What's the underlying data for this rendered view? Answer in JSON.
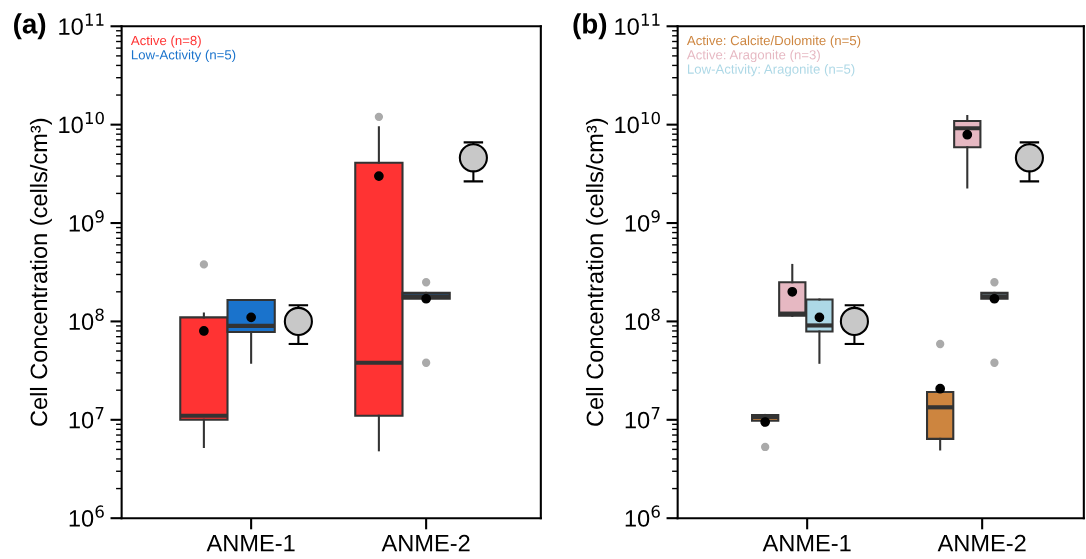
{
  "chart_data": [
    {
      "type": "box",
      "title": "(a)",
      "ylabel": "Cell Concentration (cells/cm³)",
      "categories": [
        "ANME-1",
        "ANME-2"
      ],
      "log": true,
      "legend": "top left",
      "ylim": [
        1000000.0,
        100000000000.0
      ],
      "yticks": [
        {
          "value": 1000000.0,
          "label": "10$^{6}$"
        },
        {
          "value": 10000000.0,
          "label": "10$^{7}$"
        },
        {
          "value": 100000000.0,
          "label": "10$^{8}$"
        },
        {
          "value": 1000000000.0,
          "label": "10$^{9}$"
        },
        {
          "value": 10000000000.0,
          "label": "10$^{10}$"
        },
        {
          "value": 100000000000.0,
          "label": "10$^{11}$"
        }
      ],
      "series": [
        {
          "name": "Active (n=8)",
          "color": "#ff3333",
          "boxes": [
            {
              "low": 5300000.0,
              "q1": 10000000.0,
              "median": 11000000.0,
              "q3": 110000000.0,
              "high": 120000000.0,
              "mean": 80000000.0,
              "outliers": [
                380000000.0
              ]
            },
            {
              "low": 4900000.0,
              "q1": 11000000.0,
              "median": 38000000.0,
              "q3": 4100000000.0,
              "high": 9400000000.0,
              "mean": 3000000000.0,
              "outliers": [
                12000000000.0
              ]
            }
          ]
        },
        {
          "name": "Low-Activity (n=5)",
          "color": "#1a73cc",
          "boxes": [
            {
              "low": 38000000.0,
              "q1": 78000000.0,
              "median": 90000000.0,
              "q3": 165000000.0,
              "high": 165000000.0,
              "mean": 110000000.0
            },
            {
              "low": 170000000.0,
              "q1": 170000000.0,
              "median": 180000000.0,
              "q3": 195000000.0,
              "high": 195000000.0,
              "mean": 170000000.0,
              "outliers": [
                250000000.0,
                38000000.0
              ]
            }
          ]
        },
        {
          "type": "scatter",
          "color": "#c8c8c8",
          "x": [
            "ANME-1",
            "ANME-2"
          ],
          "values": [
            100000000.0,
            4600000000.0
          ],
          "errors": [
            [
              59000000.0,
              146000000.0
            ],
            [
              2650000000.0,
              6600000000.0
            ]
          ]
        }
      ]
    },
    {
      "type": "box",
      "title": "(b)",
      "ylabel": "Cell Concentration (cells/cm³)",
      "categories": [
        "ANME-1",
        "ANME-2"
      ],
      "log": true,
      "legend": "top left",
      "ylim": [
        1000000.0,
        100000000000.0
      ],
      "yticks": [
        {
          "value": 1000000.0,
          "label": "10$^{6}$"
        },
        {
          "value": 10000000.0,
          "label": "10$^{7}$"
        },
        {
          "value": 100000000.0,
          "label": "10$^{8}$"
        },
        {
          "value": 1000000000.0,
          "label": "10$^{9}$"
        },
        {
          "value": 10000000000.0,
          "label": "10$^{10}$"
        },
        {
          "value": 100000000000.0,
          "label": "10$^{11}$"
        }
      ],
      "series": [
        {
          "name": "Active: Calcite/Dolomite (n=5)",
          "color": "#cd853f",
          "boxes": [
            {
              "low": 9800000.0,
              "q1": 9800000.0,
              "median": 10700000.0,
              "q3": 11200000.0,
              "high": 11200000.0,
              "mean": 9500000.0,
              "outliers": [
                5300000.0
              ]
            },
            {
              "low": 5000000.0,
              "q1": 6400000.0,
              "median": 13400000.0,
              "q3": 19200000.0,
              "high": 19200000.0,
              "mean": 20700000.0,
              "outliers": [
                59000000.0
              ]
            }
          ]
        },
        {
          "name": "Active: Aragonite (n=3)",
          "color": "#e6b8c2",
          "boxes": [
            {
              "low": 114000000.0,
              "q1": 114000000.0,
              "median": 120000000.0,
              "q3": 250000000.0,
              "high": 375000000.0,
              "mean": 200000000.0
            },
            {
              "low": 2300000000.0,
              "q1": 5900000000.0,
              "median": 9200000000.0,
              "q3": 10900000000.0,
              "high": 12200000000.0,
              "mean": 7900000000.0
            }
          ]
        },
        {
          "name": "Low-Activity: Aragonite (n=5)",
          "color": "#add8e6",
          "boxes": [
            {
              "low": 38000000.0,
              "q1": 79000000.0,
              "median": 91000000.0,
              "q3": 167000000.0,
              "high": 167000000.0,
              "mean": 110000000.0
            },
            {
              "low": 170000000.0,
              "q1": 170000000.0,
              "median": 180000000.0,
              "q3": 195000000.0,
              "high": 195000000.0,
              "mean": 170000000.0,
              "outliers": [
                250000000.0,
                38000000.0
              ]
            }
          ]
        },
        {
          "type": "scatter",
          "color": "#c8c8c8",
          "x": [
            "ANME-1",
            "ANME-2"
          ],
          "values": [
            100000000.0,
            4600000000.0
          ],
          "errors": [
            [
              59000000.0,
              146000000.0
            ],
            [
              2650000000.0,
              6600000000.0
            ]
          ]
        }
      ]
    }
  ]
}
